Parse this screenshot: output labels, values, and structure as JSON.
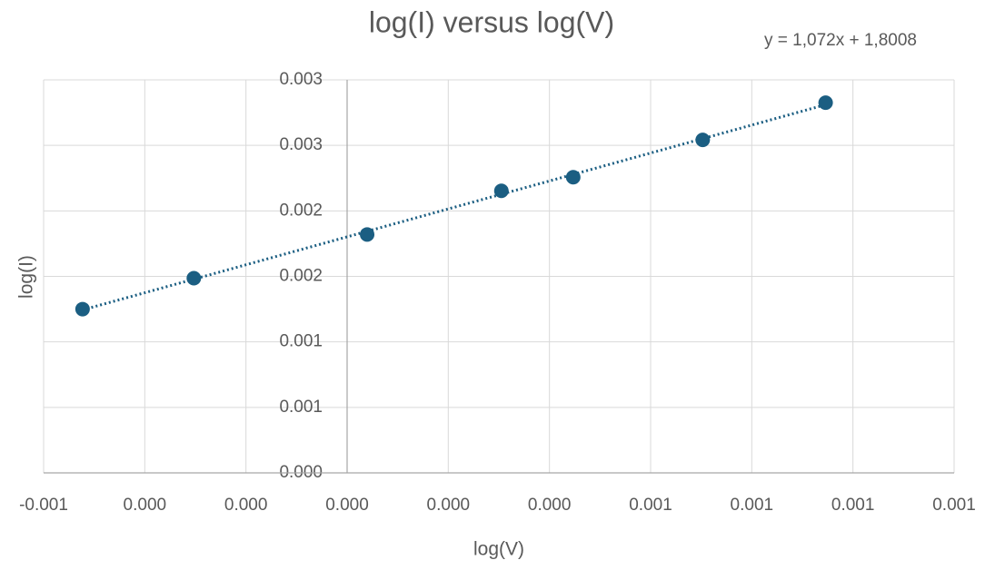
{
  "chart_data": {
    "type": "scatter",
    "title": "log(I) versus log(V)",
    "x_label": "log(V)",
    "y_label": "log(I)",
    "trendline_label": "y = 1,072x + 1,8008",
    "trendline": true,
    "x": [
      -0.000523,
      -0.000303,
      3.96e-05,
      0.000305,
      0.000447,
      0.000703,
      0.000946
    ],
    "series": [
      {
        "name": "log(I)",
        "color": "#1b5e82",
        "values": [
          0.00125,
          0.001486,
          0.00182,
          0.002153,
          0.002257,
          0.002542,
          0.002826
        ]
      }
    ],
    "xlim": [
      -0.0006,
      0.0012
    ],
    "xticks": [
      {
        "value": -0.0006,
        "label": "-0.001"
      },
      {
        "value": -0.0004,
        "label": "0.000"
      },
      {
        "value": -0.0002,
        "label": "0.000"
      },
      {
        "value": 0,
        "label": "0.000"
      },
      {
        "value": 0.0002,
        "label": "0.000"
      },
      {
        "value": 0.0004,
        "label": "0.000"
      },
      {
        "value": 0.0006,
        "label": "0.001"
      },
      {
        "value": 0.0008,
        "label": "0.001"
      },
      {
        "value": 0.001,
        "label": "0.001"
      },
      {
        "value": 0.0012,
        "label": "0.001"
      }
    ],
    "ylim": [
      0,
      0.003
    ],
    "yticks": [
      {
        "value": 0,
        "label": "0.000"
      },
      {
        "value": 0.0005,
        "label": "0.001"
      },
      {
        "value": 0.001,
        "label": "0.001"
      },
      {
        "value": 0.0015,
        "label": "0.002"
      },
      {
        "value": 0.002,
        "label": "0.002"
      },
      {
        "value": 0.0025,
        "label": "0.003"
      },
      {
        "value": 0.003,
        "label": "0.003"
      }
    ],
    "grid": true
  }
}
